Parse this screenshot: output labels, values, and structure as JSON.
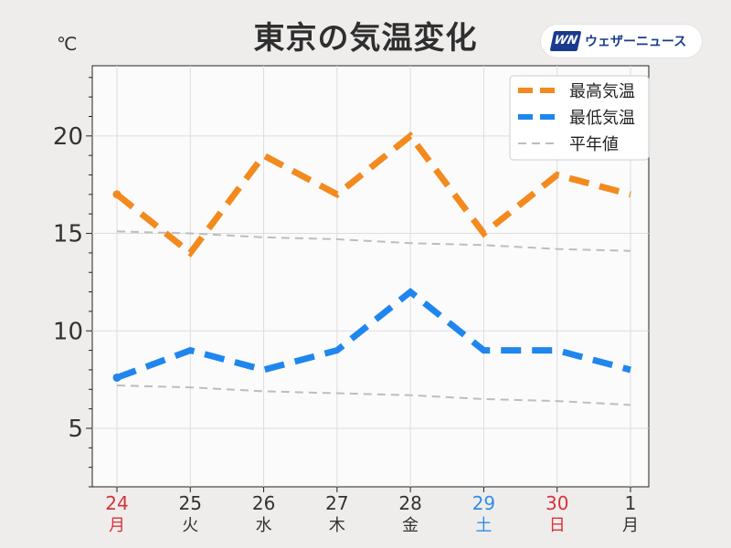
{
  "title": "東京の気温変化",
  "unit_label": "℃",
  "brand": {
    "mark": "WN",
    "text": "ウェザーニュース"
  },
  "colors": {
    "high": "#f28a1e",
    "low": "#1f86ee",
    "normal": "#bdbdbd",
    "weekday": "#333333",
    "holiday": "#d6333a",
    "saturday": "#2e8ee8"
  },
  "chart_data": {
    "type": "line",
    "x": [
      {
        "day": "24",
        "weekday": "月",
        "style": "holiday"
      },
      {
        "day": "25",
        "weekday": "火",
        "style": "weekday"
      },
      {
        "day": "26",
        "weekday": "水",
        "style": "weekday"
      },
      {
        "day": "27",
        "weekday": "木",
        "style": "weekday"
      },
      {
        "day": "28",
        "weekday": "金",
        "style": "weekday"
      },
      {
        "day": "29",
        "weekday": "土",
        "style": "saturday"
      },
      {
        "day": "30",
        "weekday": "日",
        "style": "holiday"
      },
      {
        "day": "1",
        "weekday": "月",
        "style": "weekday"
      }
    ],
    "series": [
      {
        "name": "最高気温",
        "key": "high",
        "values": [
          17,
          14,
          19,
          17,
          20,
          15,
          18,
          17
        ]
      },
      {
        "name": "最低気温",
        "key": "low",
        "values": [
          7.6,
          9,
          8,
          9,
          12,
          9,
          9,
          8
        ]
      },
      {
        "name": "平年値",
        "key": "normal",
        "values": [
          15.1,
          15.0,
          14.8,
          14.7,
          14.5,
          14.4,
          14.2,
          14.1
        ]
      },
      {
        "name": "",
        "key": "normal",
        "values": [
          7.2,
          7.1,
          6.9,
          6.8,
          6.7,
          6.5,
          6.4,
          6.2
        ]
      }
    ],
    "ylim": [
      2,
      23.6
    ],
    "yticks": [
      5,
      10,
      15,
      20
    ],
    "grid": true,
    "legend": "top-right"
  }
}
